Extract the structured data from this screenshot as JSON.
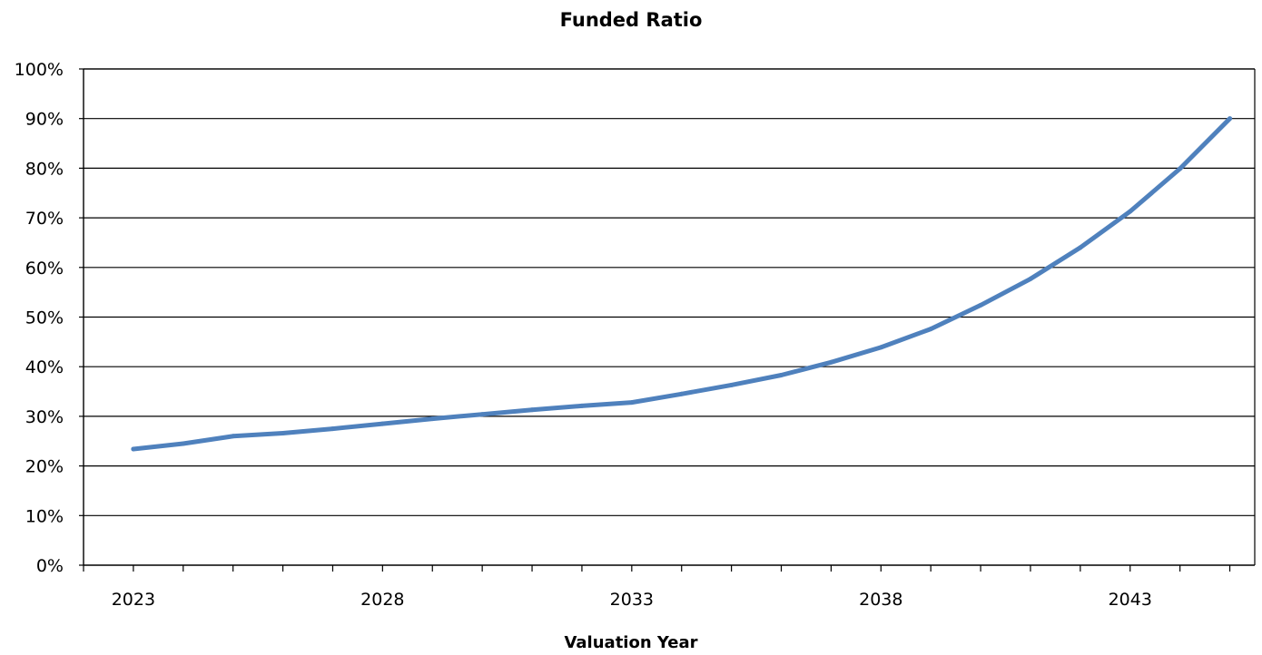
{
  "chart_data": {
    "type": "line",
    "title": "Funded Ratio",
    "xlabel": "Valuation Year",
    "ylabel": "",
    "x": [
      2023,
      2024,
      2025,
      2026,
      2027,
      2028,
      2029,
      2030,
      2031,
      2032,
      2033,
      2034,
      2035,
      2036,
      2037,
      2038,
      2039,
      2040,
      2041,
      2042,
      2043,
      2044,
      2045
    ],
    "series": [
      {
        "name": "",
        "values": [
          23.4,
          24.5,
          26.0,
          26.6,
          27.5,
          28.5,
          29.5,
          30.4,
          31.3,
          32.1,
          32.8,
          34.5,
          36.3,
          38.3,
          40.9,
          43.9,
          47.6,
          52.4,
          57.7,
          64.0,
          71.3,
          79.9,
          90.0
        ],
        "color": "#4f81bd"
      }
    ],
    "ylim": [
      0,
      100
    ],
    "yticks": [
      "0%",
      "10%",
      "20%",
      "30%",
      "40%",
      "50%",
      "60%",
      "70%",
      "80%",
      "90%",
      "100%"
    ],
    "xtick_labels": [
      "2023",
      "2028",
      "2033",
      "2038",
      "2043"
    ],
    "grid": "horizontal",
    "legend": "none"
  }
}
